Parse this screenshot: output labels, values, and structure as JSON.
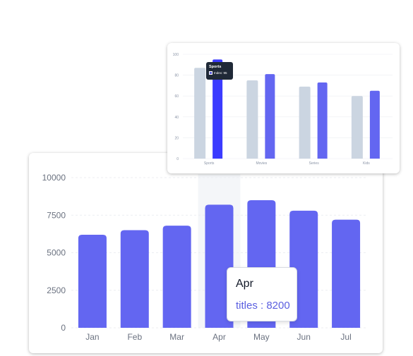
{
  "colors": {
    "bar": "#6366f1",
    "bar_highlight": "#3b3bff",
    "bar_grey": "#cbd5e1",
    "grid": "#eceef2",
    "hover_band": "#f4f6f9"
  },
  "chart_data": [
    {
      "type": "bar",
      "categories": [
        "Jan",
        "Feb",
        "Mar",
        "Apr",
        "May",
        "Jun",
        "Jul"
      ],
      "series": [
        {
          "values": [
            6200,
            6500,
            6800,
            8200,
            8500,
            7800,
            7200
          ]
        }
      ],
      "ylim": [
        0,
        10000
      ],
      "yticks": [
        "0",
        "2500",
        "5000",
        "7500",
        "10000"
      ],
      "ytick_values": [
        0,
        2500,
        5000,
        7500,
        10000
      ],
      "grid": true,
      "highlight_index": 3,
      "tooltip": {
        "title": "Apr",
        "text": "titles : 8200"
      }
    },
    {
      "type": "bar",
      "categories": [
        "Sports",
        "Movies",
        "Series",
        "Kids"
      ],
      "series": [
        {
          "values": [
            87,
            75,
            69,
            60
          ]
        },
        {
          "name": "Index",
          "values": [
            95,
            81,
            73,
            65
          ]
        }
      ],
      "ylim": [
        0,
        100
      ],
      "yticks": [
        "0",
        "20",
        "40",
        "60",
        "80",
        "100"
      ],
      "ytick_values": [
        0,
        20,
        40,
        60,
        80,
        100
      ],
      "grid": true,
      "highlight_index": 0,
      "tooltip": {
        "title": "Sports",
        "text": "Index: 95"
      }
    }
  ]
}
